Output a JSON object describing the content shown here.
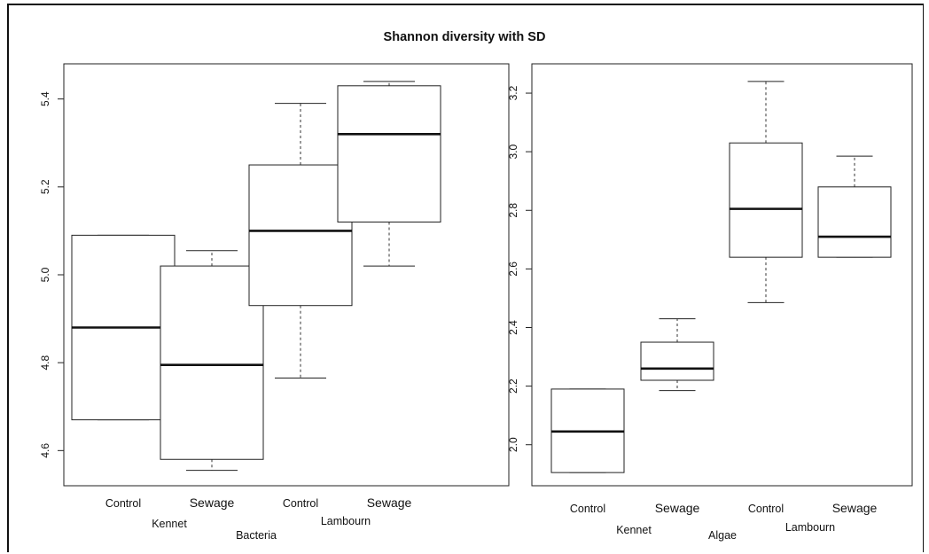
{
  "figure": {
    "title": "Shannon diversity with SD"
  },
  "chart_data": [
    {
      "type": "box",
      "panel_label": "Bacteria",
      "ylim": [
        4.52,
        5.48
      ],
      "yticks": [
        4.6,
        4.8,
        5.0,
        5.2,
        5.4
      ],
      "ytick_labels": [
        "4.6",
        "4.8",
        "5.0",
        "5.2",
        "5.4"
      ],
      "categories": [
        "Control",
        "Sewage",
        "Control",
        "Sewage"
      ],
      "groups": [
        "Kennet",
        "Lambourn"
      ],
      "boxes": [
        {
          "category": "Control",
          "group": "Kennet",
          "whisker_low": 4.67,
          "q1": 4.67,
          "median": 4.88,
          "q3": 5.09,
          "whisker_high": 5.09
        },
        {
          "category": "Sewage",
          "group": "Kennet",
          "whisker_low": 4.555,
          "q1": 4.58,
          "median": 4.795,
          "q3": 5.02,
          "whisker_high": 5.055
        },
        {
          "category": "Control",
          "group": "Lambourn",
          "whisker_low": 4.765,
          "q1": 4.93,
          "median": 5.1,
          "q3": 5.25,
          "whisker_high": 5.39
        },
        {
          "category": "Sewage",
          "group": "Lambourn",
          "whisker_low": 5.02,
          "q1": 5.12,
          "median": 5.32,
          "q3": 5.43,
          "whisker_high": 5.44
        }
      ]
    },
    {
      "type": "box",
      "panel_label": "Algae",
      "ylim": [
        1.86,
        3.3
      ],
      "yticks": [
        2.0,
        2.2,
        2.4,
        2.6,
        2.8,
        3.0,
        3.2
      ],
      "ytick_labels": [
        "2.0",
        "2.2",
        "2.4",
        "2.6",
        "2.8",
        "3.0",
        "3.2"
      ],
      "categories": [
        "Control",
        "Sewage",
        "Control",
        "Sewage"
      ],
      "groups": [
        "Kennet",
        "Lambourn"
      ],
      "boxes": [
        {
          "category": "Control",
          "group": "Kennet",
          "whisker_low": 1.905,
          "q1": 1.905,
          "median": 2.045,
          "q3": 2.19,
          "whisker_high": 2.19
        },
        {
          "category": "Sewage",
          "group": "Kennet",
          "whisker_low": 2.185,
          "q1": 2.22,
          "median": 2.26,
          "q3": 2.35,
          "whisker_high": 2.43
        },
        {
          "category": "Control",
          "group": "Lambourn",
          "whisker_low": 2.485,
          "q1": 2.64,
          "median": 2.805,
          "q3": 3.03,
          "whisker_high": 3.24
        },
        {
          "category": "Sewage",
          "group": "Lambourn",
          "whisker_low": 2.64,
          "q1": 2.64,
          "median": 2.71,
          "q3": 2.88,
          "whisker_high": 2.985
        }
      ]
    }
  ]
}
